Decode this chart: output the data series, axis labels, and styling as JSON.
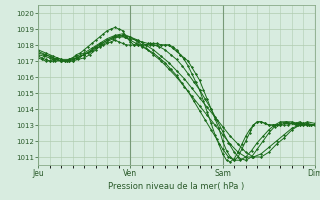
{
  "title": "",
  "xlabel": "Pression niveau de la mer( hPa )",
  "ylabel": "",
  "ylim": [
    1010.5,
    1020.5
  ],
  "yticks": [
    1011,
    1012,
    1013,
    1014,
    1015,
    1016,
    1017,
    1018,
    1019,
    1020
  ],
  "day_labels": [
    "Jeu",
    "Ven",
    "Sam",
    "Dim"
  ],
  "day_positions": [
    0,
    96,
    192,
    288
  ],
  "total_hours": 288,
  "bg_color": "#d8ece0",
  "grid_color": "#b0ccb0",
  "line_color": "#1a6b1a",
  "marker_color": "#1a6b1a",
  "axis_label_color": "#2a5a2a",
  "curves": [
    {
      "x": [
        0,
        4,
        8,
        12,
        16,
        20,
        24,
        28,
        32,
        36,
        40,
        44,
        48,
        52,
        56,
        60,
        64,
        68,
        72,
        76,
        80,
        84,
        88,
        92,
        96,
        100,
        104,
        108,
        112,
        116,
        120,
        124,
        128,
        132,
        136,
        140,
        144,
        148,
        152,
        156,
        160,
        164,
        168,
        172,
        176,
        180,
        184,
        188,
        192,
        196,
        200,
        204,
        208,
        212,
        216,
        220,
        224,
        228,
        232,
        236,
        240,
        244,
        248,
        252,
        256,
        260,
        264,
        268,
        272,
        276,
        280,
        284,
        288
      ],
      "y": [
        1017.2,
        1017.1,
        1017.0,
        1017.0,
        1017.1,
        1017.2,
        1017.1,
        1017.0,
        1017.0,
        1017.0,
        1017.2,
        1017.3,
        1017.4,
        1017.5,
        1017.6,
        1017.8,
        1017.9,
        1018.0,
        1018.1,
        1018.2,
        1018.3,
        1018.2,
        1018.1,
        1018.0,
        1018.0,
        1018.0,
        1018.0,
        1018.0,
        1018.0,
        1018.0,
        1018.0,
        1018.0,
        1018.0,
        1018.0,
        1018.0,
        1017.8,
        1017.6,
        1017.4,
        1017.2,
        1017.0,
        1016.6,
        1016.2,
        1015.8,
        1015.2,
        1014.6,
        1014.0,
        1013.4,
        1012.8,
        1012.0,
        1011.4,
        1011.0,
        1010.8,
        1011.0,
        1011.5,
        1012.0,
        1012.5,
        1013.0,
        1013.2,
        1013.2,
        1013.1,
        1013.0,
        1013.0,
        1013.0,
        1013.0,
        1013.0,
        1013.0,
        1013.1,
        1013.1,
        1013.2,
        1013.1,
        1013.0,
        1013.0,
        1013.0
      ]
    },
    {
      "x": [
        0,
        4,
        8,
        12,
        16,
        20,
        24,
        28,
        32,
        36,
        40,
        44,
        48,
        52,
        56,
        60,
        64,
        68,
        72,
        76,
        80,
        84,
        88,
        92,
        96,
        100,
        104,
        108,
        112,
        116,
        120,
        124,
        128,
        132,
        136,
        140,
        144,
        148,
        152,
        156,
        160,
        164,
        168,
        172,
        176,
        180,
        184,
        188,
        192,
        196,
        200,
        204,
        208,
        212,
        216,
        220,
        224,
        228,
        232,
        236,
        240,
        244,
        248,
        252,
        256,
        260,
        264,
        268,
        272,
        276,
        280,
        284,
        288
      ],
      "y": [
        1017.3,
        1017.2,
        1017.1,
        1017.0,
        1017.0,
        1017.1,
        1017.0,
        1017.0,
        1017.1,
        1017.2,
        1017.4,
        1017.5,
        1017.7,
        1017.9,
        1018.1,
        1018.3,
        1018.5,
        1018.7,
        1018.9,
        1019.0,
        1019.1,
        1019.0,
        1018.9,
        1018.5,
        1018.2,
        1018.0,
        1018.0,
        1018.0,
        1018.0,
        1018.1,
        1018.1,
        1018.1,
        1018.0,
        1018.0,
        1018.0,
        1017.9,
        1017.7,
        1017.4,
        1017.1,
        1016.7,
        1016.2,
        1015.7,
        1015.2,
        1014.5,
        1013.8,
        1013.1,
        1012.4,
        1011.8,
        1011.2,
        1010.8,
        1010.7,
        1010.9,
        1011.3,
        1011.8,
        1012.3,
        1012.7,
        1013.0,
        1013.2,
        1013.2,
        1013.1,
        1013.0,
        1013.0,
        1013.0,
        1013.0,
        1013.1,
        1013.1,
        1013.1,
        1013.0,
        1013.1,
        1013.1,
        1013.0,
        1013.0,
        1013.0
      ]
    },
    {
      "x": [
        0,
        6,
        12,
        18,
        24,
        30,
        36,
        42,
        48,
        54,
        60,
        66,
        72,
        78,
        84,
        90,
        96,
        102,
        108,
        114,
        120,
        126,
        132,
        138,
        144,
        150,
        156,
        162,
        168,
        174,
        180,
        186,
        192,
        198,
        204,
        210,
        216,
        222,
        228,
        234,
        240,
        246,
        252,
        258,
        264,
        270,
        276,
        282,
        288
      ],
      "y": [
        1017.5,
        1017.4,
        1017.3,
        1017.1,
        1017.0,
        1017.0,
        1017.0,
        1017.1,
        1017.2,
        1017.4,
        1017.7,
        1018.0,
        1018.2,
        1018.4,
        1018.5,
        1018.5,
        1018.4,
        1018.3,
        1018.2,
        1018.1,
        1018.0,
        1017.9,
        1017.7,
        1017.4,
        1017.1,
        1016.7,
        1016.2,
        1015.7,
        1015.2,
        1014.6,
        1014.0,
        1013.3,
        1012.6,
        1011.9,
        1011.3,
        1010.9,
        1010.8,
        1011.0,
        1011.5,
        1012.0,
        1012.5,
        1012.9,
        1013.1,
        1013.2,
        1013.2,
        1013.1,
        1013.0,
        1013.0,
        1013.0
      ]
    },
    {
      "x": [
        0,
        6,
        12,
        18,
        24,
        30,
        36,
        42,
        48,
        54,
        60,
        66,
        72,
        78,
        84,
        90,
        96,
        102,
        108,
        114,
        120,
        126,
        132,
        138,
        144,
        150,
        156,
        162,
        168,
        174,
        180,
        186,
        192,
        198,
        204,
        210,
        216,
        222,
        228,
        234,
        240,
        246,
        252,
        258,
        264,
        270,
        276,
        282,
        288
      ],
      "y": [
        1017.4,
        1017.3,
        1017.2,
        1017.0,
        1017.0,
        1017.0,
        1017.1,
        1017.2,
        1017.4,
        1017.6,
        1017.9,
        1018.1,
        1018.3,
        1018.5,
        1018.6,
        1018.5,
        1018.3,
        1018.1,
        1017.9,
        1017.7,
        1017.5,
        1017.2,
        1016.9,
        1016.5,
        1016.1,
        1015.6,
        1015.1,
        1014.5,
        1013.9,
        1013.3,
        1012.7,
        1012.1,
        1011.5,
        1011.0,
        1010.8,
        1010.8,
        1011.0,
        1011.4,
        1011.9,
        1012.3,
        1012.7,
        1013.0,
        1013.2,
        1013.2,
        1013.1,
        1013.0,
        1013.0,
        1013.0,
        1013.0
      ]
    },
    {
      "x": [
        0,
        8,
        16,
        24,
        32,
        40,
        48,
        56,
        64,
        72,
        80,
        88,
        96,
        104,
        112,
        120,
        128,
        136,
        144,
        152,
        160,
        168,
        176,
        184,
        192,
        200,
        208,
        216,
        224,
        232,
        240,
        248,
        256,
        264,
        272,
        280,
        288
      ],
      "y": [
        1017.6,
        1017.4,
        1017.2,
        1017.0,
        1017.0,
        1017.2,
        1017.4,
        1017.7,
        1018.0,
        1018.3,
        1018.5,
        1018.6,
        1018.5,
        1018.3,
        1018.0,
        1017.7,
        1017.3,
        1016.9,
        1016.4,
        1015.9,
        1015.3,
        1014.7,
        1014.1,
        1013.5,
        1012.9,
        1012.3,
        1011.8,
        1011.3,
        1011.0,
        1011.0,
        1011.3,
        1011.8,
        1012.2,
        1012.7,
        1013.0,
        1013.2,
        1013.1
      ]
    },
    {
      "x": [
        0,
        8,
        16,
        24,
        32,
        40,
        48,
        56,
        64,
        72,
        80,
        88,
        96,
        104,
        112,
        120,
        128,
        136,
        144,
        152,
        160,
        168,
        176,
        184,
        192,
        200,
        208,
        216,
        224,
        232,
        240,
        248,
        256,
        264,
        272,
        280,
        288
      ],
      "y": [
        1017.7,
        1017.5,
        1017.3,
        1017.1,
        1017.1,
        1017.3,
        1017.5,
        1017.8,
        1018.1,
        1018.4,
        1018.6,
        1018.7,
        1018.5,
        1018.2,
        1017.8,
        1017.4,
        1017.0,
        1016.5,
        1016.0,
        1015.4,
        1014.8,
        1014.2,
        1013.6,
        1013.0,
        1012.4,
        1011.8,
        1011.3,
        1011.0,
        1011.0,
        1011.2,
        1011.6,
        1012.0,
        1012.4,
        1012.8,
        1013.0,
        1013.1,
        1013.0
      ]
    }
  ]
}
